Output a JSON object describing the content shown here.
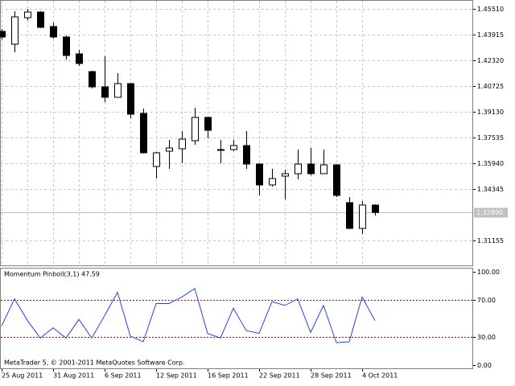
{
  "chart_data": [
    {
      "type": "candlestick",
      "categories": [
        "25 Aug 2011",
        null,
        null,
        null,
        "31 Aug 2011",
        null,
        null,
        null,
        "6 Sep 2011",
        null,
        null,
        null,
        "12 Sep 2011",
        null,
        null,
        null,
        "16 Sep 2011",
        null,
        null,
        null,
        "22 Sep 2011",
        null,
        null,
        null,
        "28 Sep 2011",
        null,
        null,
        null,
        "4 Oct 2011",
        null
      ],
      "open": [
        1.44115,
        1.43317,
        1.44962,
        1.45311,
        1.44414,
        1.43766,
        1.42719,
        1.41622,
        1.40675,
        1.40028,
        1.40875,
        1.39031,
        1.35741,
        1.36688,
        1.36838,
        1.37336,
        1.38781,
        1.36788,
        1.36788,
        1.37037,
        1.35891,
        1.34595,
        1.35143,
        1.35293,
        1.35891,
        1.35293,
        1.35841,
        1.33498,
        1.31903,
        1.33349
      ],
      "high": [
        1.44264,
        1.4536,
        1.4551,
        1.4536,
        1.44663,
        1.43865,
        1.42968,
        1.41672,
        1.42569,
        1.41523,
        1.40925,
        1.3933,
        1.36638,
        1.37386,
        1.37934,
        1.39379,
        1.38831,
        1.37386,
        1.37386,
        1.37934,
        1.3594,
        1.35592,
        1.35542,
        1.36788,
        1.36888,
        1.36788,
        1.35891,
        1.33847,
        1.33598,
        1.33399
      ],
      "low": [
        1.43616,
        1.4282,
        1.44812,
        1.44314,
        1.43666,
        1.4237,
        1.41971,
        1.40576,
        1.39729,
        1.40028,
        1.38732,
        1.36539,
        1.34994,
        1.35592,
        1.3594,
        1.37087,
        1.37486,
        1.3594,
        1.36688,
        1.35592,
        1.33947,
        1.34495,
        1.33698,
        1.34944,
        1.35193,
        1.35293,
        1.33847,
        1.31853,
        1.31554,
        1.327
      ],
      "close": [
        1.43766,
        1.45012,
        1.45311,
        1.44364,
        1.43766,
        1.42619,
        1.42121,
        1.40675,
        1.40028,
        1.40875,
        1.38981,
        1.36589,
        1.36589,
        1.36888,
        1.37436,
        1.38781,
        1.37984,
        1.36788,
        1.37037,
        1.35891,
        1.34595,
        1.34994,
        1.35293,
        1.35891,
        1.35293,
        1.35841,
        1.33947,
        1.31903,
        1.33349,
        1.3289
      ],
      "up_color": "#ffffff",
      "down_color": "#000000",
      "outline_color": "#000000",
      "ylim": [
        1.29611,
        1.46058
      ],
      "yticks": [
        {
          "value": 1.4551,
          "label": "1.45510"
        },
        {
          "value": 1.43915,
          "label": "1.43915"
        },
        {
          "value": 1.4232,
          "label": "1.42320"
        },
        {
          "value": 1.40725,
          "label": "1.40725"
        },
        {
          "value": 1.3913,
          "label": "1.39130"
        },
        {
          "value": 1.37535,
          "label": "1.37535"
        },
        {
          "value": 1.3594,
          "label": "1.35940"
        },
        {
          "value": 1.34345,
          "label": "1.34345"
        },
        {
          "value": 1.31155,
          "label": "1.31155"
        }
      ],
      "price_marker": {
        "value": 1.3289,
        "label": "1.32890"
      },
      "grid": true
    },
    {
      "type": "line",
      "title": "Momentum Pinboll(3,1) 47.59",
      "annotation": "MetaTrader 5, © 2001-2011 MetaQuotes Software Corp.",
      "values": [
        42,
        71,
        48,
        29,
        40,
        29,
        49,
        29,
        53,
        78,
        31,
        25,
        66,
        66,
        73,
        82,
        34,
        29,
        61,
        37,
        34,
        68,
        64,
        71,
        35,
        64,
        24,
        25,
        73,
        47.59
      ],
      "color": "#2a40e0",
      "levels": [
        70,
        30
      ],
      "level_color": "#c00000",
      "ylim": [
        -3.45,
        104.31
      ],
      "yticks": [
        {
          "value": 100,
          "label": "100.00"
        },
        {
          "value": 70,
          "label": "70.00"
        },
        {
          "value": 30,
          "label": "30.00"
        },
        {
          "value": 0,
          "label": "0.00"
        }
      ]
    }
  ]
}
